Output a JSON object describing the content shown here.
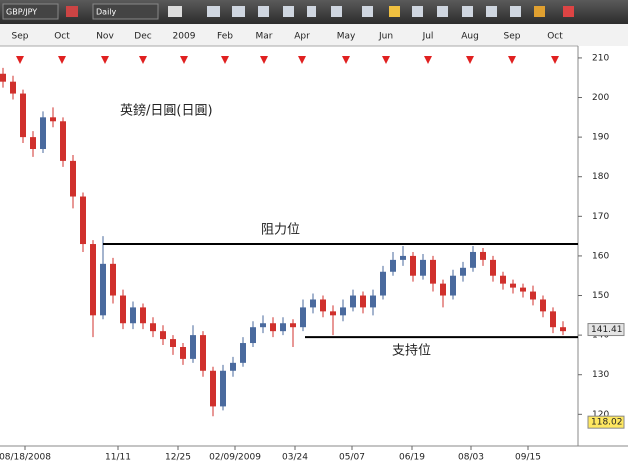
{
  "toolbar": {
    "symbol": "GBP/JPY",
    "period": "Daily"
  },
  "chart_data": {
    "type": "candlestick",
    "title": "英鎊/日圓(日圓)",
    "up_color": "#4a6a9e",
    "down_color": "#d0302c",
    "line_color": "#000000",
    "marker_color": "#e02020",
    "x": [
      1.5,
      6.5,
      11.5,
      16.5,
      21.5,
      26.5,
      31.5,
      36.5,
      41.5,
      46.5,
      51.5,
      56.5,
      61.5,
      66.5,
      71.5,
      76.5,
      81.5,
      86.5,
      91.5,
      96.5,
      101.5,
      106.5,
      111.5,
      116.5,
      121.5,
      126.5,
      131.5,
      136.5,
      141.5,
      146.5,
      151.5,
      156.5,
      161.5,
      166.5,
      171.5,
      176.5,
      181.5,
      186.5,
      191.5,
      196.5,
      201.5,
      206.5,
      211.5,
      216.5,
      221.5,
      226.5,
      231.5,
      236.5,
      241.5,
      246.5,
      251.5,
      256.5,
      261.5,
      266.5,
      271.5,
      276.5,
      281.5
    ],
    "open": [
      206,
      204,
      201,
      190,
      187,
      195,
      194,
      184,
      175,
      163,
      145,
      158,
      150,
      143,
      147,
      143,
      141,
      139,
      137,
      134,
      140,
      131,
      122,
      131,
      133,
      138,
      142,
      143,
      141,
      143,
      142,
      147,
      149,
      146,
      145,
      147,
      150,
      147,
      150,
      156,
      159,
      160,
      155,
      159,
      153,
      150,
      155,
      157,
      161,
      159,
      155,
      153,
      152,
      151,
      149,
      146,
      142
    ],
    "high": [
      207.5,
      205.5,
      202,
      191.5,
      196.5,
      197.5,
      195,
      185.5,
      176,
      164,
      165,
      159.5,
      151.5,
      148.5,
      148,
      144.5,
      142.5,
      140,
      138,
      142.5,
      141,
      132,
      132.5,
      134.5,
      139.5,
      143.5,
      145,
      144.5,
      144.5,
      144,
      149,
      150.5,
      150,
      147.5,
      149,
      151.5,
      151,
      151.5,
      157.5,
      161,
      162.5,
      161,
      160.5,
      160,
      154,
      156.5,
      158.5,
      162.5,
      162,
      160,
      156,
      154,
      153,
      152.5,
      150,
      147,
      143.5
    ],
    "low": [
      202.5,
      199.5,
      188.5,
      185,
      186,
      192.5,
      182.5,
      172,
      161,
      139.5,
      144,
      148,
      141.5,
      141.5,
      141.5,
      139.5,
      137.5,
      135,
      132.5,
      133,
      129.5,
      119.5,
      121,
      129.5,
      132,
      137,
      140.5,
      139.5,
      140,
      137,
      141,
      145.5,
      144.5,
      140,
      143.5,
      146,
      145.5,
      145,
      149,
      155,
      157.5,
      153.5,
      154,
      151,
      147,
      149,
      153.5,
      156,
      157.5,
      153.5,
      151.5,
      150.5,
      149.5,
      147.5,
      144.5,
      140.5,
      140
    ],
    "close": [
      204,
      201,
      190,
      187,
      195,
      194,
      184,
      175,
      163,
      145,
      158,
      150,
      143,
      147,
      143,
      141,
      139,
      137,
      134,
      140,
      131,
      122,
      131,
      133,
      138,
      142,
      143,
      141,
      143,
      142,
      147,
      149,
      146,
      145,
      147,
      150,
      147,
      150,
      156,
      159,
      160,
      155,
      159,
      153,
      150,
      155,
      157,
      161,
      159,
      155,
      153,
      152,
      151,
      149,
      146,
      142,
      141
    ],
    "lines": [
      {
        "label": "阻力位",
        "y": 163,
        "x": [
          51.5,
          289
        ]
      },
      {
        "label": "支持位",
        "y": 139.5,
        "x": [
          152.5,
          289
        ]
      }
    ],
    "price_labels": [
      141.41,
      118.02
    ],
    "xlim": [
      0,
      289
    ],
    "ylim": [
      112,
      212
    ],
    "yticks": [
      120,
      130,
      140,
      150,
      160,
      170,
      180,
      190,
      200,
      210
    ],
    "xticks": [
      {
        "value": 12.5,
        "label": "08/18/2008"
      },
      {
        "value": 59,
        "label": "11/11"
      },
      {
        "value": 89,
        "label": "12/25"
      },
      {
        "value": 117.5,
        "label": "02/09/2009"
      },
      {
        "value": 147.5,
        "label": "03/24"
      },
      {
        "value": 176,
        "label": "05/07"
      },
      {
        "value": 206,
        "label": "06/19"
      },
      {
        "value": 235.5,
        "label": "08/03"
      },
      {
        "value": 264,
        "label": "09/15"
      }
    ],
    "top_ticks": [
      {
        "value": 10,
        "label": "Sep"
      },
      {
        "value": 31,
        "label": "Oct"
      },
      {
        "value": 52.5,
        "label": "Nov"
      },
      {
        "value": 71.5,
        "label": "Dec"
      },
      {
        "value": 92,
        "label": "2009"
      },
      {
        "value": 112.5,
        "label": "Feb"
      },
      {
        "value": 132,
        "label": "Mar"
      },
      {
        "value": 151,
        "label": "Apr"
      },
      {
        "value": 173,
        "label": "May"
      },
      {
        "value": 193,
        "label": "Jun"
      },
      {
        "value": 214,
        "label": "Jul"
      },
      {
        "value": 235,
        "label": "Aug"
      },
      {
        "value": 256,
        "label": "Sep"
      },
      {
        "value": 277.5,
        "label": "Oct"
      }
    ]
  }
}
